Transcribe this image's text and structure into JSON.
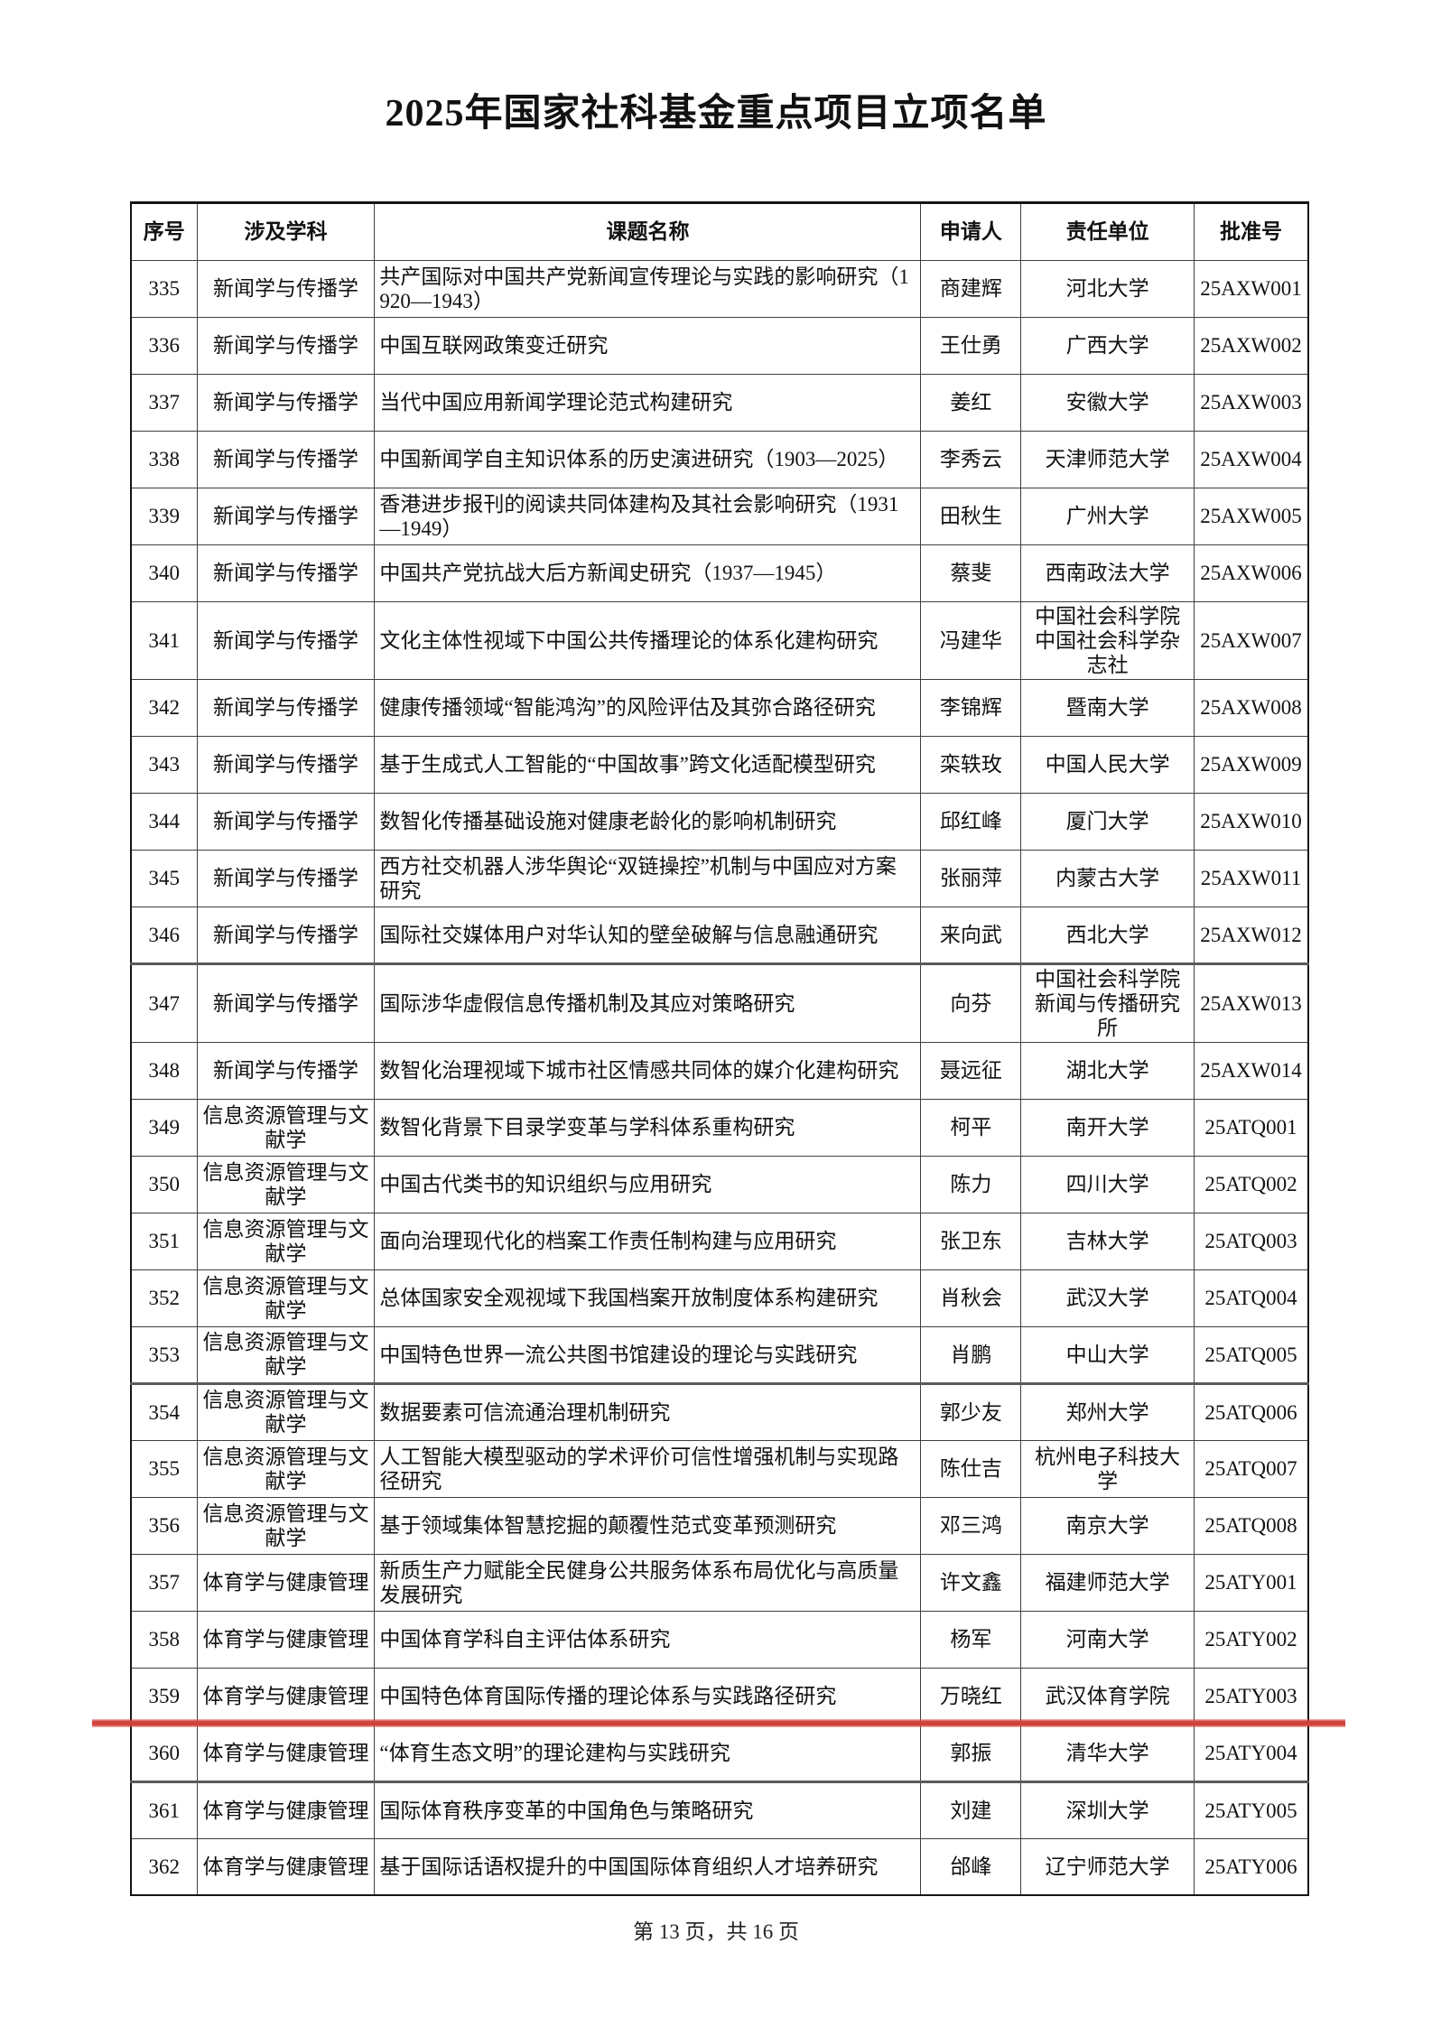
{
  "title": "2025年国家社科基金重点项目立项名单",
  "footer": "第 13 页，共 16 页",
  "table": {
    "headers": [
      "序号",
      "涉及学科",
      "课题名称",
      "申请人",
      "责任单位",
      "批准号"
    ],
    "thick_border_above": [
      "347",
      "354",
      "361"
    ],
    "underline_below": "359",
    "underline_color": "#d0423c",
    "rows": [
      {
        "no": "335",
        "discipline": "新闻学与传播学",
        "title": "共产国际对中国共产党新闻宣传理论与实践的影响研究（1920—1943）",
        "applicant": "商建辉",
        "unit": "河北大学",
        "grant": "25AXW001"
      },
      {
        "no": "336",
        "discipline": "新闻学与传播学",
        "title": "中国互联网政策变迁研究",
        "applicant": "王仕勇",
        "unit": "广西大学",
        "grant": "25AXW002"
      },
      {
        "no": "337",
        "discipline": "新闻学与传播学",
        "title": "当代中国应用新闻学理论范式构建研究",
        "applicant": "姜红",
        "unit": "安徽大学",
        "grant": "25AXW003"
      },
      {
        "no": "338",
        "discipline": "新闻学与传播学",
        "title": "中国新闻学自主知识体系的历史演进研究（1903—2025）",
        "applicant": "李秀云",
        "unit": "天津师范大学",
        "grant": "25AXW004"
      },
      {
        "no": "339",
        "discipline": "新闻学与传播学",
        "title": "香港进步报刊的阅读共同体建构及其社会影响研究（1931—1949）",
        "applicant": "田秋生",
        "unit": "广州大学",
        "grant": "25AXW005"
      },
      {
        "no": "340",
        "discipline": "新闻学与传播学",
        "title": "中国共产党抗战大后方新闻史研究（1937—1945）",
        "applicant": "蔡斐",
        "unit": "西南政法大学",
        "grant": "25AXW006"
      },
      {
        "no": "341",
        "discipline": "新闻学与传播学",
        "title": "文化主体性视域下中国公共传播理论的体系化建构研究",
        "applicant": "冯建华",
        "unit": "中国社会科学院中国社会科学杂志社",
        "grant": "25AXW007"
      },
      {
        "no": "342",
        "discipline": "新闻学与传播学",
        "title": "健康传播领域“智能鸿沟”的风险评估及其弥合路径研究",
        "applicant": "李锦辉",
        "unit": "暨南大学",
        "grant": "25AXW008"
      },
      {
        "no": "343",
        "discipline": "新闻学与传播学",
        "title": "基于生成式人工智能的“中国故事”跨文化适配模型研究",
        "applicant": "栾轶玫",
        "unit": "中国人民大学",
        "grant": "25AXW009"
      },
      {
        "no": "344",
        "discipline": "新闻学与传播学",
        "title": "数智化传播基础设施对健康老龄化的影响机制研究",
        "applicant": "邱红峰",
        "unit": "厦门大学",
        "grant": "25AXW010"
      },
      {
        "no": "345",
        "discipline": "新闻学与传播学",
        "title": "西方社交机器人涉华舆论“双链操控”机制与中国应对方案研究",
        "applicant": "张丽萍",
        "unit": "内蒙古大学",
        "grant": "25AXW011"
      },
      {
        "no": "346",
        "discipline": "新闻学与传播学",
        "title": "国际社交媒体用户对华认知的壁垒破解与信息融通研究",
        "applicant": "来向武",
        "unit": "西北大学",
        "grant": "25AXW012"
      },
      {
        "no": "347",
        "discipline": "新闻学与传播学",
        "title": "国际涉华虚假信息传播机制及其应对策略研究",
        "applicant": "向芬",
        "unit": "中国社会科学院新闻与传播研究所",
        "grant": "25AXW013"
      },
      {
        "no": "348",
        "discipline": "新闻学与传播学",
        "title": "数智化治理视域下城市社区情感共同体的媒介化建构研究",
        "applicant": "聂远征",
        "unit": "湖北大学",
        "grant": "25AXW014"
      },
      {
        "no": "349",
        "discipline": "信息资源管理与文献学",
        "title": "数智化背景下目录学变革与学科体系重构研究",
        "applicant": "柯平",
        "unit": "南开大学",
        "grant": "25ATQ001"
      },
      {
        "no": "350",
        "discipline": "信息资源管理与文献学",
        "title": "中国古代类书的知识组织与应用研究",
        "applicant": "陈力",
        "unit": "四川大学",
        "grant": "25ATQ002"
      },
      {
        "no": "351",
        "discipline": "信息资源管理与文献学",
        "title": "面向治理现代化的档案工作责任制构建与应用研究",
        "applicant": "张卫东",
        "unit": "吉林大学",
        "grant": "25ATQ003"
      },
      {
        "no": "352",
        "discipline": "信息资源管理与文献学",
        "title": "总体国家安全观视域下我国档案开放制度体系构建研究",
        "applicant": "肖秋会",
        "unit": "武汉大学",
        "grant": "25ATQ004"
      },
      {
        "no": "353",
        "discipline": "信息资源管理与文献学",
        "title": "中国特色世界一流公共图书馆建设的理论与实践研究",
        "applicant": "肖鹏",
        "unit": "中山大学",
        "grant": "25ATQ005"
      },
      {
        "no": "354",
        "discipline": "信息资源管理与文献学",
        "title": "数据要素可信流通治理机制研究",
        "applicant": "郭少友",
        "unit": "郑州大学",
        "grant": "25ATQ006"
      },
      {
        "no": "355",
        "discipline": "信息资源管理与文献学",
        "title": "人工智能大模型驱动的学术评价可信性增强机制与实现路径研究",
        "applicant": "陈仕吉",
        "unit": "杭州电子科技大学",
        "grant": "25ATQ007"
      },
      {
        "no": "356",
        "discipline": "信息资源管理与文献学",
        "title": "基于领域集体智慧挖掘的颠覆性范式变革预测研究",
        "applicant": "邓三鸿",
        "unit": "南京大学",
        "grant": "25ATQ008"
      },
      {
        "no": "357",
        "discipline": "体育学与健康管理",
        "title": "新质生产力赋能全民健身公共服务体系布局优化与高质量发展研究",
        "applicant": "许文鑫",
        "unit": "福建师范大学",
        "grant": "25ATY001"
      },
      {
        "no": "358",
        "discipline": "体育学与健康管理",
        "title": "中国体育学科自主评估体系研究",
        "applicant": "杨军",
        "unit": "河南大学",
        "grant": "25ATY002"
      },
      {
        "no": "359",
        "discipline": "体育学与健康管理",
        "title": "中国特色体育国际传播的理论体系与实践路径研究",
        "applicant": "万晓红",
        "unit": "武汉体育学院",
        "grant": "25ATY003"
      },
      {
        "no": "360",
        "discipline": "体育学与健康管理",
        "title": "“体育生态文明”的理论建构与实践研究",
        "applicant": "郭振",
        "unit": "清华大学",
        "grant": "25ATY004"
      },
      {
        "no": "361",
        "discipline": "体育学与健康管理",
        "title": "国际体育秩序变革的中国角色与策略研究",
        "applicant": "刘建",
        "unit": "深圳大学",
        "grant": "25ATY005"
      },
      {
        "no": "362",
        "discipline": "体育学与健康管理",
        "title": "基于国际话语权提升的中国国际体育组织人才培养研究",
        "applicant": "邰峰",
        "unit": "辽宁师范大学",
        "grant": "25ATY006"
      }
    ]
  }
}
